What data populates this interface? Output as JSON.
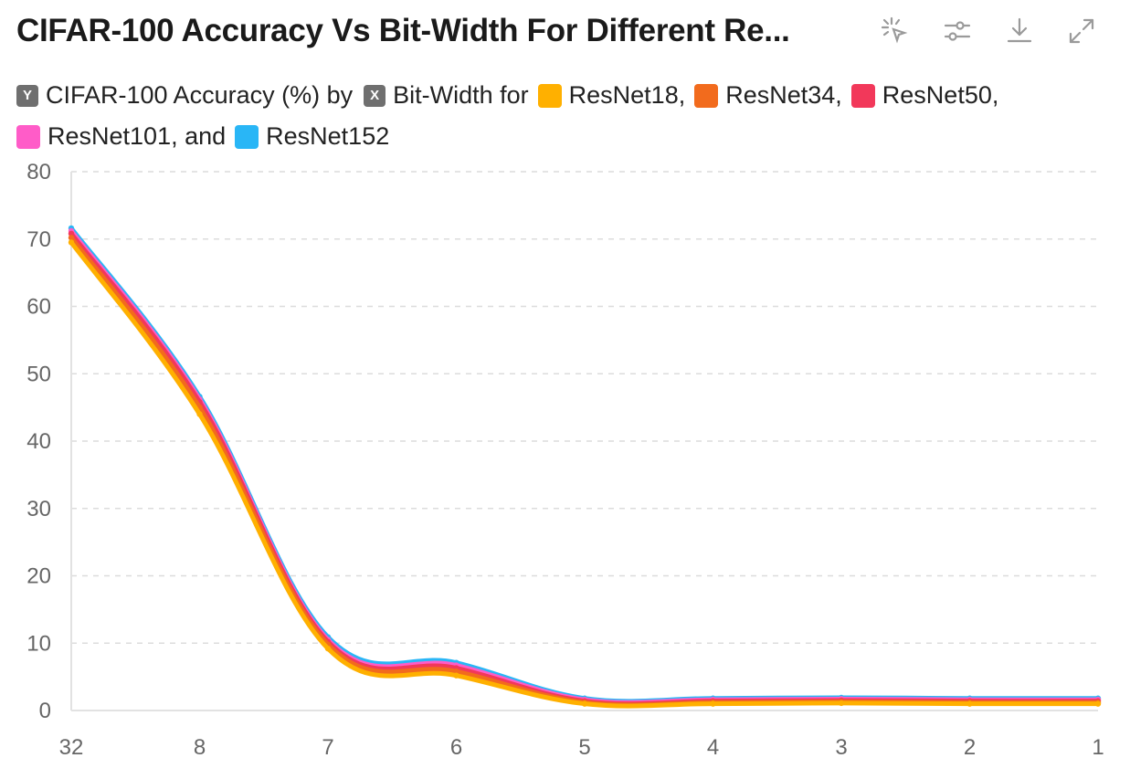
{
  "header": {
    "title": "CIFAR-100 Accuracy Vs Bit-Width For Different Re...",
    "toolbar": [
      {
        "name": "select-pointer-icon"
      },
      {
        "name": "settings-sliders-icon"
      },
      {
        "name": "download-icon"
      },
      {
        "name": "expand-icon"
      }
    ]
  },
  "legend": {
    "y_badge": "Y",
    "y_text": "CIFAR-100 Accuracy (%) by",
    "x_badge": "X",
    "x_text": "Bit-Width for",
    "items": [
      {
        "label": "ResNet18,",
        "color": "#FFB000"
      },
      {
        "label": "ResNet34,",
        "color": "#F26B1D"
      },
      {
        "label": "ResNet50,",
        "color": "#F2385A"
      },
      {
        "label": "ResNet101, and",
        "color": "#FF5CC8"
      },
      {
        "label": "ResNet152",
        "color": "#29B6F6"
      }
    ]
  },
  "chart_data": {
    "type": "line",
    "title": "CIFAR-100 Accuracy Vs Bit-Width For Different Re...",
    "xlabel": "",
    "ylabel": "",
    "categories": [
      "32",
      "8",
      "7",
      "6",
      "5",
      "4",
      "3",
      "2",
      "1"
    ],
    "ylim": [
      0,
      80
    ],
    "yticks": [
      0,
      10,
      20,
      30,
      40,
      50,
      60,
      70,
      80
    ],
    "grid": true,
    "legend_position": "top",
    "series": [
      {
        "name": "ResNet18",
        "color": "#FFB000",
        "values": [
          69.5,
          44.0,
          9.2,
          5.2,
          1.0,
          1.0,
          1.1,
          1.0,
          1.0
        ]
      },
      {
        "name": "ResNet34",
        "color": "#F26B1D",
        "values": [
          70.2,
          45.0,
          9.8,
          5.8,
          1.2,
          1.2,
          1.3,
          1.2,
          1.2
        ]
      },
      {
        "name": "ResNet50",
        "color": "#F2385A",
        "values": [
          70.8,
          45.8,
          10.2,
          6.3,
          1.4,
          1.4,
          1.5,
          1.4,
          1.4
        ]
      },
      {
        "name": "ResNet101",
        "color": "#FF5CC8",
        "values": [
          71.2,
          46.2,
          10.5,
          6.7,
          1.6,
          1.6,
          1.7,
          1.6,
          1.6
        ]
      },
      {
        "name": "ResNet152",
        "color": "#29B6F6",
        "values": [
          71.6,
          46.6,
          10.9,
          7.1,
          1.8,
          1.8,
          1.9,
          1.8,
          1.8
        ]
      }
    ]
  }
}
